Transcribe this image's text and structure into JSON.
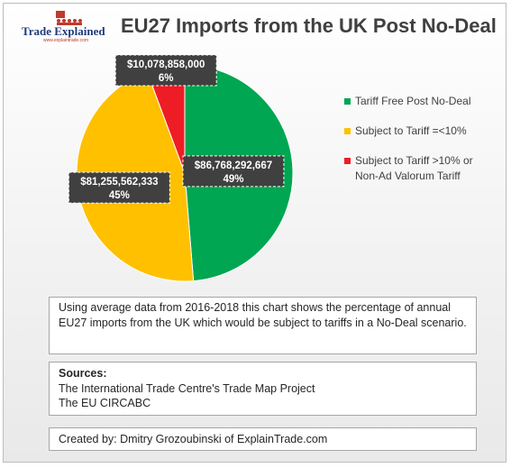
{
  "logo": {
    "title": "Trade Explained",
    "subtitle": "www.explaintrade.com"
  },
  "colors": {
    "tariff_free": "#00a651",
    "tariff_low": "#ffc000",
    "tariff_high": "#ee1c25",
    "label_box": "#404040"
  },
  "chart_data": {
    "type": "pie",
    "title": "EU27 Imports from the UK Post No-Deal",
    "slices": [
      {
        "name": "Tariff Free Post No-Deal",
        "value": 86768292667,
        "percent": 49,
        "value_label": "$86,768,292,667",
        "percent_label": "49%",
        "color": "#00a651"
      },
      {
        "name": "Subject to Tariff =<10%",
        "value": 81255562333,
        "percent": 45,
        "value_label": "$81,255,562,333",
        "percent_label": "45%",
        "color": "#ffc000"
      },
      {
        "name": "Subject to Tariff >10% or Non-Ad Valorum Tariff",
        "value": 10078858000,
        "percent": 6,
        "value_label": "$10,078,858,000",
        "percent_label": "6%",
        "color": "#ee1c25"
      }
    ],
    "legend": {
      "placement": "right",
      "items": [
        {
          "lines": [
            "Tariff Free Post No-Deal"
          ],
          "color": "#00a651"
        },
        {
          "lines": [
            "Subject to Tariff =<10%"
          ],
          "color": "#ffc000"
        },
        {
          "lines": [
            "Subject to Tariff >10% or",
            "Non-Ad Valorum Tariff"
          ],
          "color": "#ee1c25"
        }
      ]
    }
  },
  "description": "Using average data from 2016-2018 this chart shows the percentage of annual EU27 imports from the UK which would be subject to tariffs in a No-Deal scenario.",
  "sources": {
    "heading": "Sources:",
    "items": [
      "The International Trade Centre's Trade Map Project",
      "The EU CIRCABC"
    ]
  },
  "credit": "Created by: Dmitry Grozoubinski of ExplainTrade.com"
}
